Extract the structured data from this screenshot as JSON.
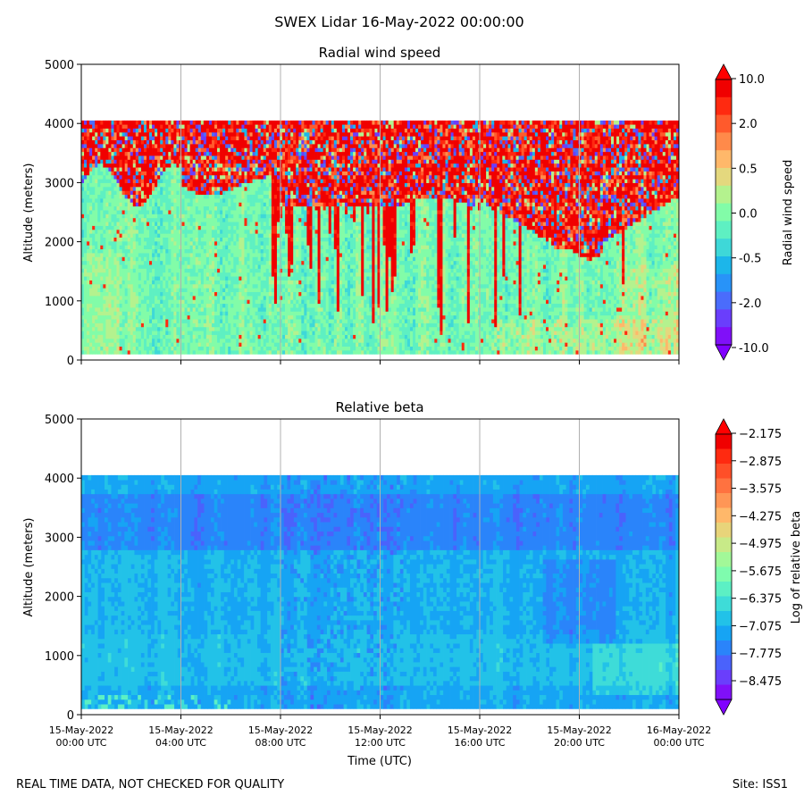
{
  "figure": {
    "title": "SWEX Lidar 16-May-2022 00:00:00",
    "footer_left": "REAL TIME DATA, NOT CHECKED FOR QUALITY",
    "footer_right": "Site: ISS1"
  },
  "chart_data": [
    {
      "type": "heatmap",
      "title": "Radial wind speed",
      "ylabel": "Altitude (meters)",
      "ylim": [
        0,
        5000
      ],
      "yticks": [
        "0",
        "1000",
        "2000",
        "3000",
        "4000",
        "5000"
      ],
      "xlim": [
        "15-May-2022 00:00 UTC",
        "16-May-2022 00:00 UTC"
      ],
      "xtick_labels_shown": false,
      "grid": "vertical lines at x ticks",
      "colorbar": {
        "label": "Radial wind speed",
        "ticks": [
          "10.0",
          "2.0",
          "0.5",
          "0.0",
          "-0.5",
          "-2.0",
          "-10.0"
        ],
        "extend": "both",
        "colors": [
          "#f00000",
          "#ff2a10",
          "#ff5a2c",
          "#ff8a4a",
          "#ffb86a",
          "#e4d87e",
          "#b4f28e",
          "#82fca8",
          "#5ef0c2",
          "#3ed8d8",
          "#1cb6ea",
          "#2893f8",
          "#4a6cfc",
          "#6a3efc",
          "#8010f8"
        ],
        "under_color": "#8000ff",
        "over_color": "#ff0000"
      },
      "data_range_altitude": [
        100,
        4050
      ],
      "features": "Mostly near-zero speeds (cyan/green) below ~3000 m; noisy red/blue values above ~3000 m; strong red streaks extending down to near the surface between 08:00 and 13:00 UTC; noisy layer descending to ~1700 m around 20:00 UTC"
    },
    {
      "type": "heatmap",
      "title": "Relative beta",
      "xlabel": "Time (UTC)",
      "ylabel": "Altitude (meters)",
      "ylim": [
        0,
        5000
      ],
      "yticks": [
        "0",
        "1000",
        "2000",
        "3000",
        "4000",
        "5000"
      ],
      "xlim": [
        "15-May-2022 00:00 UTC",
        "16-May-2022 00:00 UTC"
      ],
      "xticks": [
        {
          "date": "15-May-2022",
          "time": "00:00 UTC"
        },
        {
          "date": "15-May-2022",
          "time": "04:00 UTC"
        },
        {
          "date": "15-May-2022",
          "time": "08:00 UTC"
        },
        {
          "date": "15-May-2022",
          "time": "12:00 UTC"
        },
        {
          "date": "15-May-2022",
          "time": "16:00 UTC"
        },
        {
          "date": "15-May-2022",
          "time": "20:00 UTC"
        },
        {
          "date": "16-May-2022",
          "time": "00:00 UTC"
        }
      ],
      "grid": "vertical lines at x ticks",
      "colorbar": {
        "label": "Log of relative beta",
        "ticks": [
          "−2.175",
          "−2.875",
          "−3.575",
          "−4.275",
          "−4.975",
          "−5.675",
          "−6.375",
          "−7.075",
          "−7.775",
          "−8.475"
        ],
        "extend": "both",
        "colors": [
          "#f00000",
          "#ff2a10",
          "#ff4f28",
          "#ff7240",
          "#ff9656",
          "#ffb86a",
          "#e8d47a",
          "#c8ea88",
          "#a2f898",
          "#7ffcae",
          "#5cf0c4",
          "#3edcd8",
          "#22c2e8",
          "#16a4f4",
          "#2a84fa",
          "#4a62fc",
          "#6a3efc",
          "#8010f8"
        ],
        "under_color": "#8000ff",
        "over_color": "#ff0000"
      },
      "data_range_altitude": [
        100,
        4050
      ],
      "features": "Values mostly between -7.8 and -6.4 (blue to cyan); slightly higher (cyan) near the surface and around 1000-2000 m; lower (deeper blue) around 3000-3500 m and a dark patch near 20:00 UTC at 1500-2500 m"
    }
  ]
}
